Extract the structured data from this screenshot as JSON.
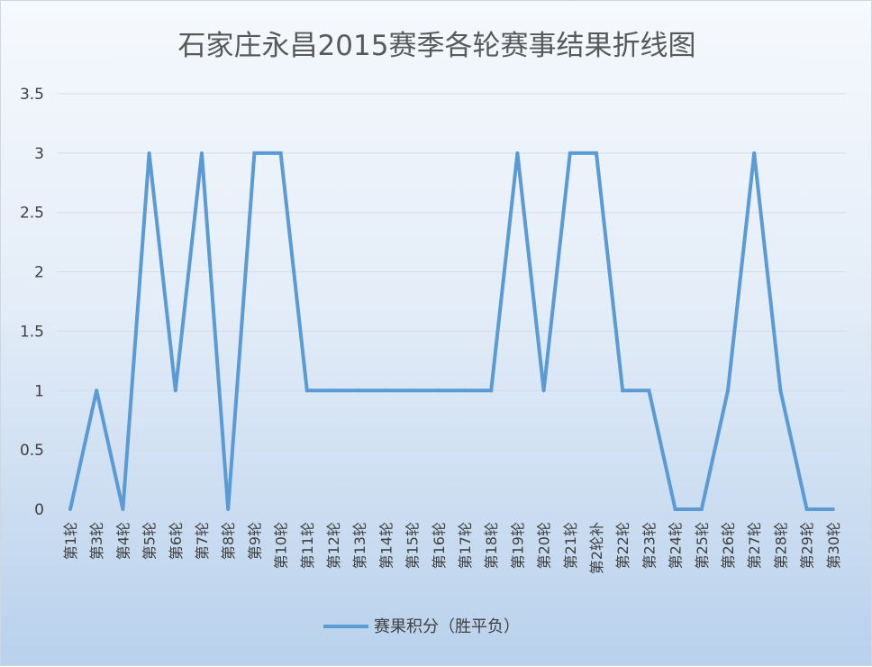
{
  "chart_data": {
    "type": "line",
    "title": "石家庄永昌2015赛季各轮赛事结果折线图",
    "xlabel": "",
    "ylabel": "",
    "ylim": [
      0,
      3.5
    ],
    "yticks": [
      "0",
      "0.5",
      "1",
      "1.5",
      "2",
      "2.5",
      "3",
      "3.5"
    ],
    "grid": true,
    "legend_position": "bottom",
    "categories": [
      "第1轮",
      "第3轮",
      "第4轮",
      "第5轮",
      "第6轮",
      "第7轮",
      "第8轮",
      "第9轮",
      "第10轮",
      "第11轮",
      "第12轮",
      "第13轮",
      "第14轮",
      "第15轮",
      "第16轮",
      "第17轮",
      "第18轮",
      "第19轮",
      "第20轮",
      "第21轮",
      "第2轮补",
      "第22轮",
      "第23轮",
      "第24轮",
      "第25轮",
      "第26轮",
      "第27轮",
      "第28轮",
      "第29轮",
      "第30轮"
    ],
    "series": [
      {
        "name": "赛果积分（胜平负）",
        "color": "#5b9bd5",
        "values": [
          0,
          1,
          0,
          3,
          1,
          3,
          0,
          3,
          3,
          1,
          1,
          1,
          1,
          1,
          1,
          1,
          1,
          3,
          1,
          3,
          3,
          1,
          1,
          0,
          0,
          1,
          3,
          1,
          0,
          0
        ]
      }
    ]
  }
}
